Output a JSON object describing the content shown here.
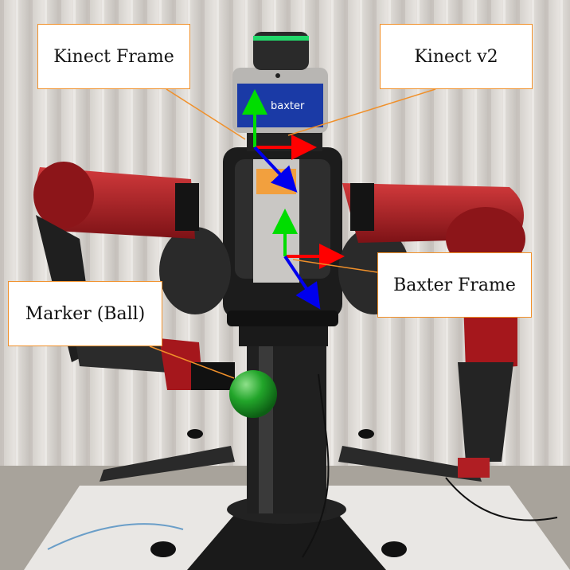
{
  "labels": {
    "kinect_frame": "Kinect Frame",
    "kinect_v2": "Kinect v2",
    "baxter_frame": "Baxter Frame",
    "marker": "Marker (Ball)"
  },
  "screen_logo": "baxter",
  "colors": {
    "label_border": "#f0902a",
    "leader_line": "#f0902a",
    "axis_x": "#ff0000",
    "axis_y": "#00dd00",
    "axis_z": "#0000ee",
    "arm_red": "#b01e23",
    "ball_green": "#22a52a"
  },
  "icons": [
    "robot-head-light-ring",
    "display-screen",
    "coordinate-axes"
  ]
}
